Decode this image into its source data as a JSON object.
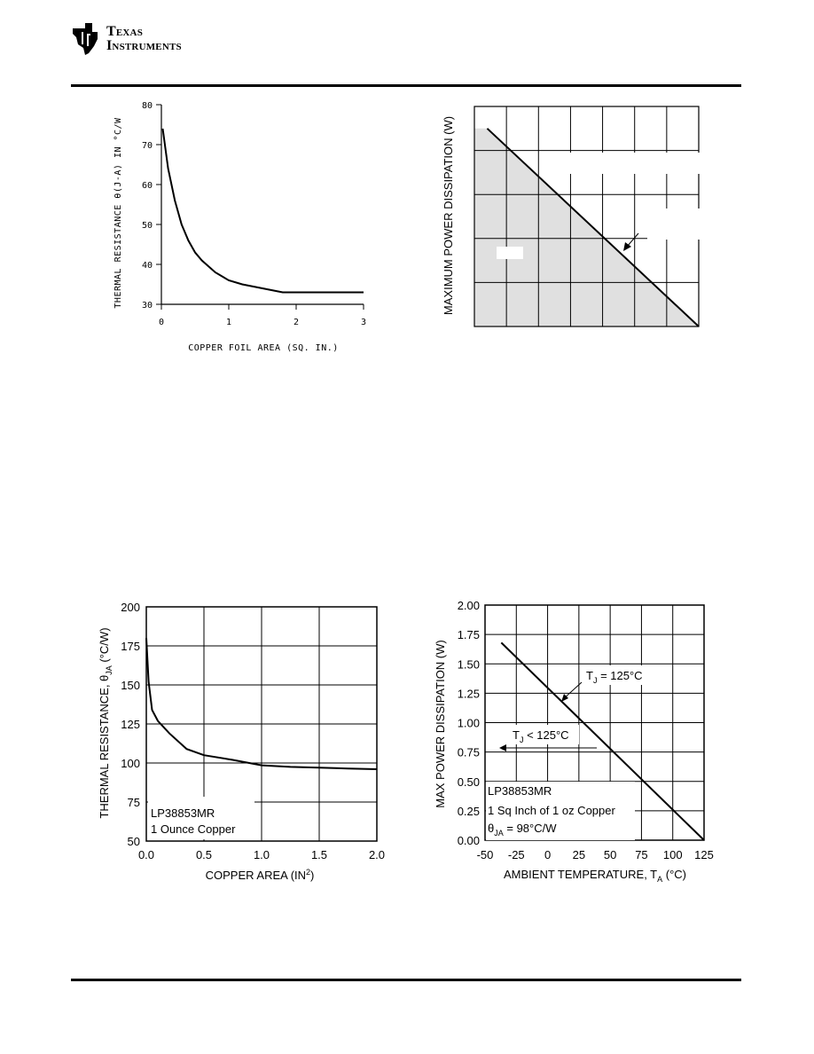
{
  "header": {
    "logo_line1": "Texas",
    "logo_line2": "Instruments"
  },
  "chart_data": [
    {
      "type": "line",
      "xlabel": "COPPER FOIL AREA (SQ. IN.)",
      "ylabel": "THERMAL RESISTANCE θ(J-A) IN °C/W",
      "xlim": [
        0,
        3
      ],
      "ylim": [
        30,
        80
      ],
      "xticks": [
        "0",
        "1",
        "2",
        "3"
      ],
      "yticks": [
        "30",
        "40",
        "50",
        "60",
        "70",
        "80"
      ],
      "grid": false,
      "series": [
        {
          "x": [
            0.02,
            0.1,
            0.2,
            0.3,
            0.4,
            0.5,
            0.6,
            0.7,
            0.8,
            1.0,
            1.2,
            1.5,
            1.8,
            2.0,
            2.5,
            3.0
          ],
          "y": [
            74,
            64,
            56,
            50,
            46,
            43,
            41,
            39.5,
            38,
            36,
            35,
            34,
            33,
            33,
            33,
            33
          ]
        }
      ]
    },
    {
      "type": "area",
      "ylabel": "MAXIMUM POWER DISSIPATION (W)",
      "xlim": [
        -50,
        125
      ],
      "ylim": [
        0,
        5
      ],
      "grid": true,
      "series": [
        {
          "x": [
            -40,
            125
          ],
          "y": [
            4.5,
            0
          ]
        }
      ]
    },
    {
      "type": "line",
      "xlabel": "COPPER AREA (IN",
      "xlabel_sup": "2",
      "xlabel_end": ")",
      "ylabel": "THERMAL RESISTANCE, θ",
      "ylabel_sub": "JA",
      "ylabel_end": " (°C/W)",
      "xlim": [
        0,
        2
      ],
      "ylim": [
        50,
        200
      ],
      "xticks": [
        "0.0",
        "0.5",
        "1.0",
        "1.5",
        "2.0"
      ],
      "yticks": [
        "50",
        "75",
        "100",
        "125",
        "150",
        "175",
        "200"
      ],
      "grid": true,
      "annotations": [
        "LP38853MR",
        "1 Ounce Copper"
      ],
      "series": [
        {
          "x": [
            0.0,
            0.02,
            0.05,
            0.1,
            0.2,
            0.35,
            0.5,
            0.75,
            1.0,
            1.25,
            1.5,
            1.75,
            2.0
          ],
          "y": [
            180,
            152,
            134,
            127,
            119,
            109,
            105,
            102,
            98.5,
            97.5,
            97,
            96.5,
            96
          ]
        }
      ]
    },
    {
      "type": "line",
      "xlabel": "AMBIENT TEMPERATURE, T",
      "xlabel_sub": "A",
      "xlabel_end": " (°C)",
      "ylabel": "MAX POWER DISSIPATION (W)",
      "xlim": [
        -50,
        125
      ],
      "ylim": [
        0,
        2
      ],
      "xticks": [
        "-50",
        "-25",
        "0",
        "25",
        "50",
        "75",
        "100",
        "125"
      ],
      "yticks": [
        "0.00",
        "0.25",
        "0.50",
        "0.75",
        "1.00",
        "1.25",
        "1.50",
        "1.75",
        "2.00"
      ],
      "grid": true,
      "annotations": {
        "tj_eq": "T",
        "tj_eq_sub": "J",
        "tj_eq_end": " = 125°C",
        "tj_lt": "T",
        "tj_lt_sub": "J",
        "tj_lt_end": " < 125°C",
        "device": "LP38853MR",
        "copper": "1 Sq Inch of 1 oz Copper",
        "theta": "θ",
        "theta_sub": "JA",
        "theta_end": " = 98°C/W"
      },
      "series": [
        {
          "x": [
            -37,
            125
          ],
          "y": [
            1.68,
            0
          ]
        }
      ]
    }
  ]
}
